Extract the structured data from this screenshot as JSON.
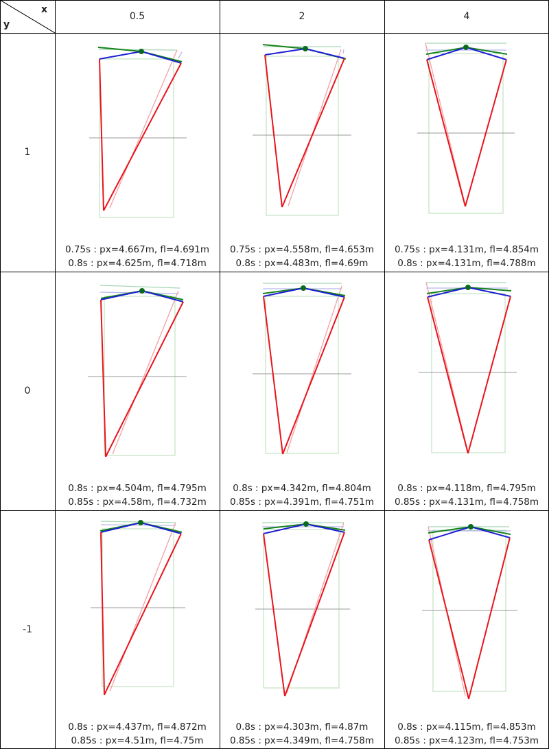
{
  "header": {
    "x_label": "x",
    "y_label": "y",
    "columns": [
      "0.5",
      "2",
      "4"
    ],
    "rows": [
      "1",
      "0",
      "-1"
    ]
  },
  "colors": {
    "frame": "#b6dcb6",
    "ground": "#999999",
    "red": "#e8141b",
    "red_faint": "#f3a0a6",
    "blue": "#1d1dd4",
    "blue_faint": "#b7b7ec",
    "green": "#14841a",
    "green_faint": "#a7d6b4",
    "dot": "#0a6a1c"
  },
  "panels": [
    [
      {
        "captions": [
          "0.75s : px=4.667m, fl=4.691m",
          "0.8s : px=4.625m, fl=4.718m"
        ]
      },
      {
        "captions": [
          "0.75s : px=4.558m, fl=4.653m",
          "0.8s : px=4.483m, fl=4.69m"
        ]
      },
      {
        "captions": [
          "0.75s : px=4.131m, fl=4.854m",
          "0.8s : px=4.131m, fl=4.788m"
        ]
      }
    ],
    [
      {
        "captions": [
          "0.8s : px=4.504m, fl=4.795m",
          "0.85s : px=4.58m, fl=4.732m"
        ]
      },
      {
        "captions": [
          "0.8s : px=4.342m, fl=4.804m",
          "0.85s : px=4.391m, fl=4.751m"
        ]
      },
      {
        "captions": [
          "0.8s : px=4.118m, fl=4.795m",
          "0.85s : px=4.131m, fl=4.758m"
        ]
      }
    ],
    [
      {
        "captions": [
          "0.8s : px=4.437m, fl=4.872m",
          "0.85s : px=4.51m, fl=4.75m"
        ]
      },
      {
        "captions": [
          "0.8s : px=4.303m, fl=4.87m",
          "0.85s : px=4.349m, fl=4.758m"
        ]
      },
      {
        "captions": [
          "0.8s : px=4.115m, fl=4.853m",
          "0.85s : px=4.123m, fl=4.753m"
        ]
      }
    ]
  ]
}
